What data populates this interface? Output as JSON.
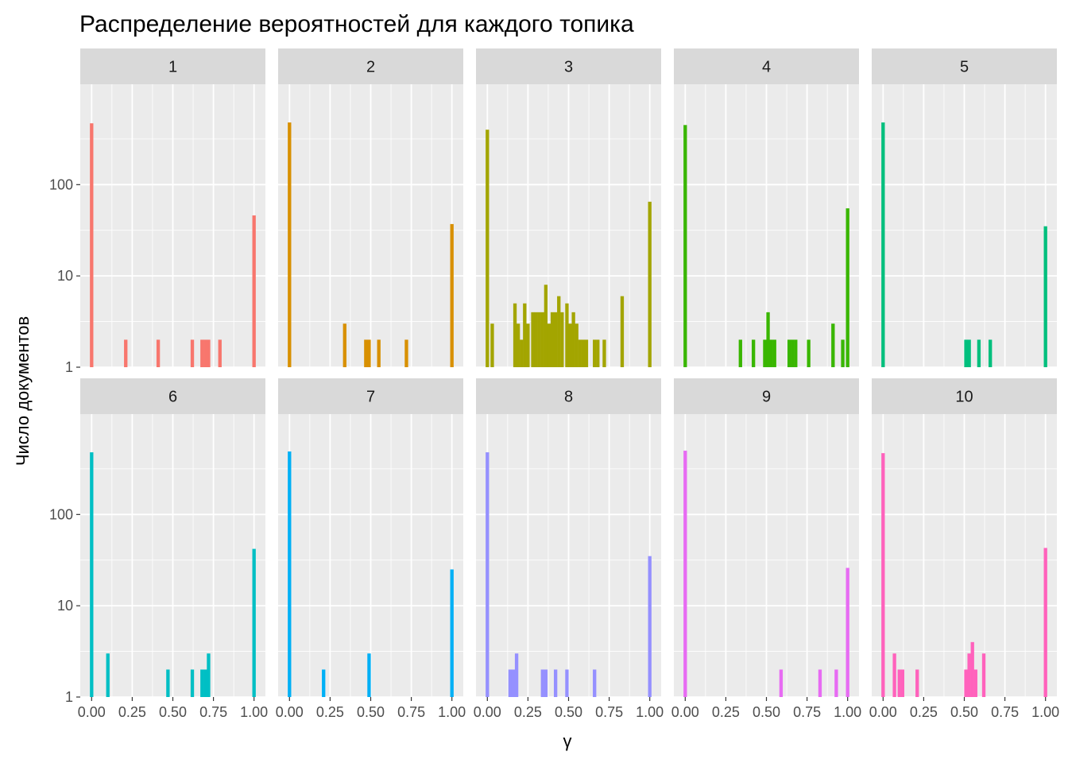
{
  "colors": {
    "panel_background": "#EBEBEB",
    "strip_background": "#D9D9D9",
    "grid": "#FFFFFF",
    "text": "#1A1A1A",
    "tick_text": "#4D4D4D",
    "topics": [
      "#F8766D",
      "#D89000",
      "#A3A500",
      "#39B600",
      "#00BF7D",
      "#00BFC4",
      "#00B0F6",
      "#9590FF",
      "#E76BF3",
      "#FF62BC"
    ]
  },
  "chart_data": {
    "type": "bar",
    "subtype": "faceted histogram",
    "title": "Распределение вероятностей для каждого топика",
    "xlabel": "γ",
    "ylabel": "Число документов",
    "xlim": [
      -0.07,
      1.07
    ],
    "ylim_log10": [
      0,
      3.1
    ],
    "y_scale": "log10",
    "x_ticks": [
      "0.00",
      "0.25",
      "0.50",
      "0.75",
      "1.00"
    ],
    "x_tick_values": [
      0,
      0.25,
      0.5,
      0.75,
      1
    ],
    "y_ticks": [
      "1",
      "10",
      "100"
    ],
    "y_tick_values": [
      1,
      10,
      100
    ],
    "grid": true,
    "legend": "none",
    "layout": {
      "rows": 2,
      "cols": 5
    },
    "facets": [
      {
        "label": "1",
        "bars": [
          [
            0,
            470
          ],
          [
            0.21,
            2
          ],
          [
            0.41,
            2
          ],
          [
            0.62,
            2
          ],
          [
            0.68,
            2
          ],
          [
            0.7,
            2
          ],
          [
            0.72,
            2
          ],
          [
            0.79,
            2
          ],
          [
            1.0,
            46
          ]
        ]
      },
      {
        "label": "2",
        "bars": [
          [
            0,
            480
          ],
          [
            0.34,
            3
          ],
          [
            0.47,
            2
          ],
          [
            0.49,
            2
          ],
          [
            0.55,
            2
          ],
          [
            0.72,
            2
          ],
          [
            1.0,
            37
          ]
        ]
      },
      {
        "label": "3",
        "bars": [
          [
            0,
            400
          ],
          [
            0.03,
            3
          ],
          [
            0.17,
            5
          ],
          [
            0.19,
            3
          ],
          [
            0.21,
            2
          ],
          [
            0.23,
            5
          ],
          [
            0.25,
            3
          ],
          [
            0.28,
            4
          ],
          [
            0.3,
            4
          ],
          [
            0.32,
            4
          ],
          [
            0.34,
            4
          ],
          [
            0.36,
            8
          ],
          [
            0.38,
            3
          ],
          [
            0.4,
            4
          ],
          [
            0.42,
            4
          ],
          [
            0.44,
            6
          ],
          [
            0.46,
            4
          ],
          [
            0.49,
            5
          ],
          [
            0.51,
            3
          ],
          [
            0.53,
            4
          ],
          [
            0.55,
            3
          ],
          [
            0.57,
            2
          ],
          [
            0.59,
            2
          ],
          [
            0.61,
            2
          ],
          [
            0.66,
            2
          ],
          [
            0.68,
            2
          ],
          [
            0.72,
            2
          ],
          [
            0.83,
            6
          ],
          [
            1.0,
            65
          ]
        ]
      },
      {
        "label": "4",
        "bars": [
          [
            0,
            450
          ],
          [
            0.34,
            2
          ],
          [
            0.42,
            2
          ],
          [
            0.49,
            2
          ],
          [
            0.51,
            4
          ],
          [
            0.53,
            2
          ],
          [
            0.55,
            2
          ],
          [
            0.64,
            2
          ],
          [
            0.66,
            2
          ],
          [
            0.68,
            2
          ],
          [
            0.76,
            2
          ],
          [
            0.91,
            3
          ],
          [
            0.97,
            2
          ],
          [
            1.0,
            55
          ]
        ]
      },
      {
        "label": "5",
        "bars": [
          [
            0,
            480
          ],
          [
            0.51,
            2
          ],
          [
            0.53,
            2
          ],
          [
            0.59,
            2
          ],
          [
            0.66,
            2
          ],
          [
            1.0,
            35
          ]
        ]
      },
      {
        "label": "6",
        "bars": [
          [
            0,
            480
          ],
          [
            0.1,
            3
          ],
          [
            0.47,
            2
          ],
          [
            0.62,
            2
          ],
          [
            0.68,
            2
          ],
          [
            0.7,
            2
          ],
          [
            0.72,
            3
          ],
          [
            1.0,
            42
          ]
        ]
      },
      {
        "label": "7",
        "bars": [
          [
            0,
            490
          ],
          [
            0.21,
            2
          ],
          [
            0.49,
            3
          ],
          [
            1.0,
            25
          ]
        ]
      },
      {
        "label": "8",
        "bars": [
          [
            0,
            480
          ],
          [
            0.14,
            2
          ],
          [
            0.16,
            2
          ],
          [
            0.18,
            3
          ],
          [
            0.34,
            2
          ],
          [
            0.36,
            2
          ],
          [
            0.42,
            2
          ],
          [
            0.49,
            2
          ],
          [
            0.66,
            2
          ],
          [
            1.0,
            35
          ]
        ]
      },
      {
        "label": "9",
        "bars": [
          [
            0,
            500
          ],
          [
            0.59,
            2
          ],
          [
            0.83,
            2
          ],
          [
            0.93,
            2
          ],
          [
            1.0,
            26
          ]
        ]
      },
      {
        "label": "10",
        "bars": [
          [
            0,
            470
          ],
          [
            0.07,
            3
          ],
          [
            0.1,
            2
          ],
          [
            0.12,
            2
          ],
          [
            0.21,
            2
          ],
          [
            0.51,
            2
          ],
          [
            0.53,
            3
          ],
          [
            0.55,
            4
          ],
          [
            0.57,
            2
          ],
          [
            0.62,
            3
          ],
          [
            1.0,
            43
          ]
        ]
      }
    ]
  }
}
